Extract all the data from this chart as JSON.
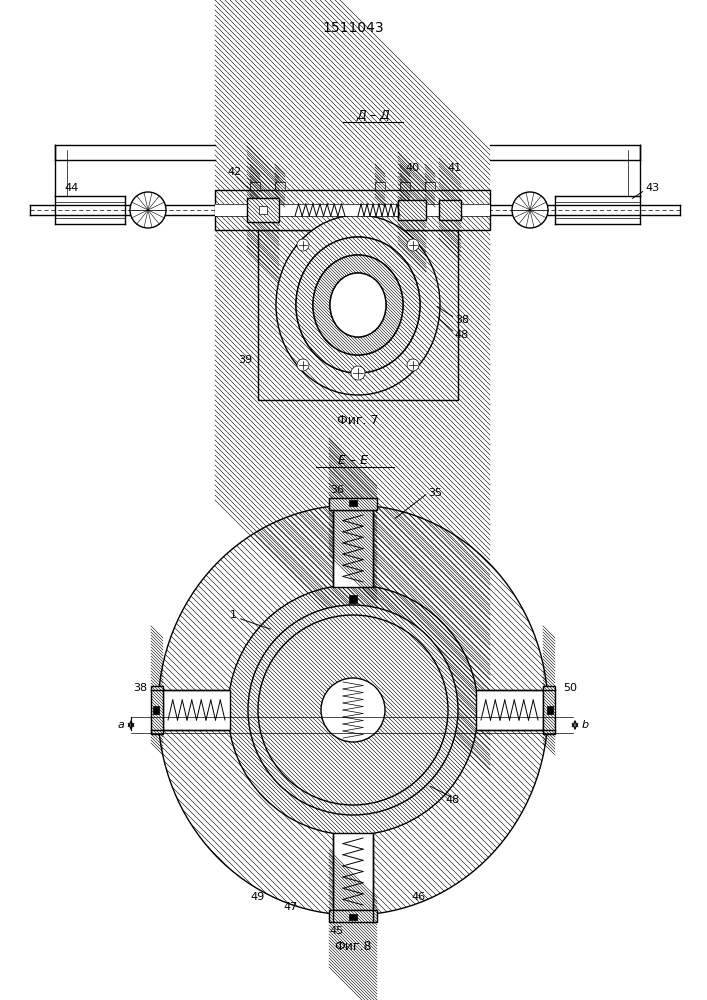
{
  "title": "1511043",
  "fig7_label": "Фиг. 7",
  "fig8_label": "Фиг.8",
  "section_dd": "Д – Д",
  "section_ee": "Е – Е",
  "bg_color": "#ffffff",
  "lc": "#000000"
}
